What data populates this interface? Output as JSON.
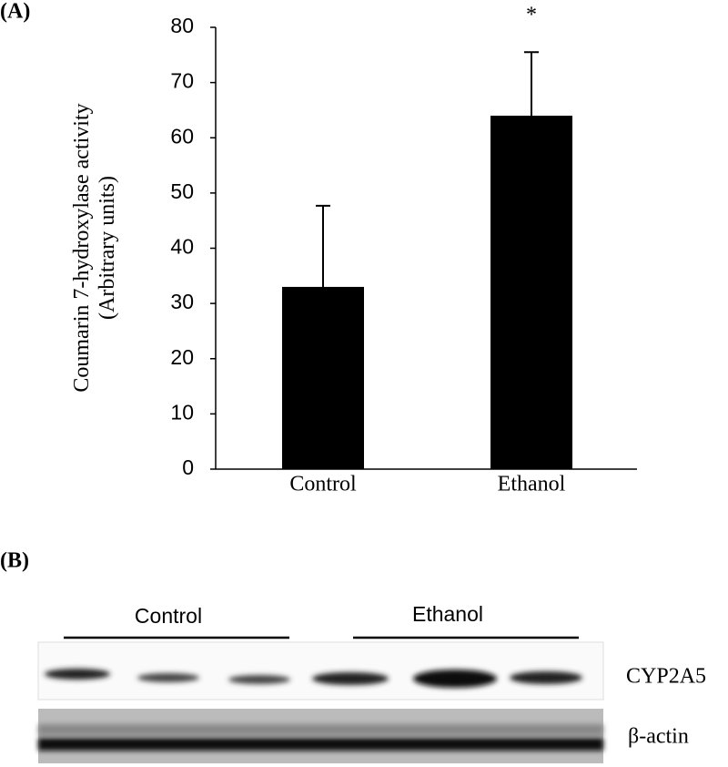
{
  "panel_a_label": "(A)",
  "chart_data": {
    "type": "bar",
    "ylabel": [
      "Coumarin 7-hydroxylase activity",
      "(Arbitrary units)"
    ],
    "categories": [
      "Control",
      "Ethanol"
    ],
    "values": [
      33,
      64
    ],
    "errors": [
      14.7,
      11.5
    ],
    "color": "#000000",
    "annotations": [
      {
        "text": "*",
        "category": 1
      }
    ],
    "ylim": [
      0,
      80
    ],
    "yticks": [
      0,
      10,
      20,
      30,
      40,
      50,
      60,
      70,
      80
    ],
    "grid": false
  },
  "panel_b": {
    "label": "(B)",
    "groups": [
      "Control",
      "Ethanol"
    ],
    "rows": [
      "CYP2A5",
      "β-actin"
    ]
  }
}
